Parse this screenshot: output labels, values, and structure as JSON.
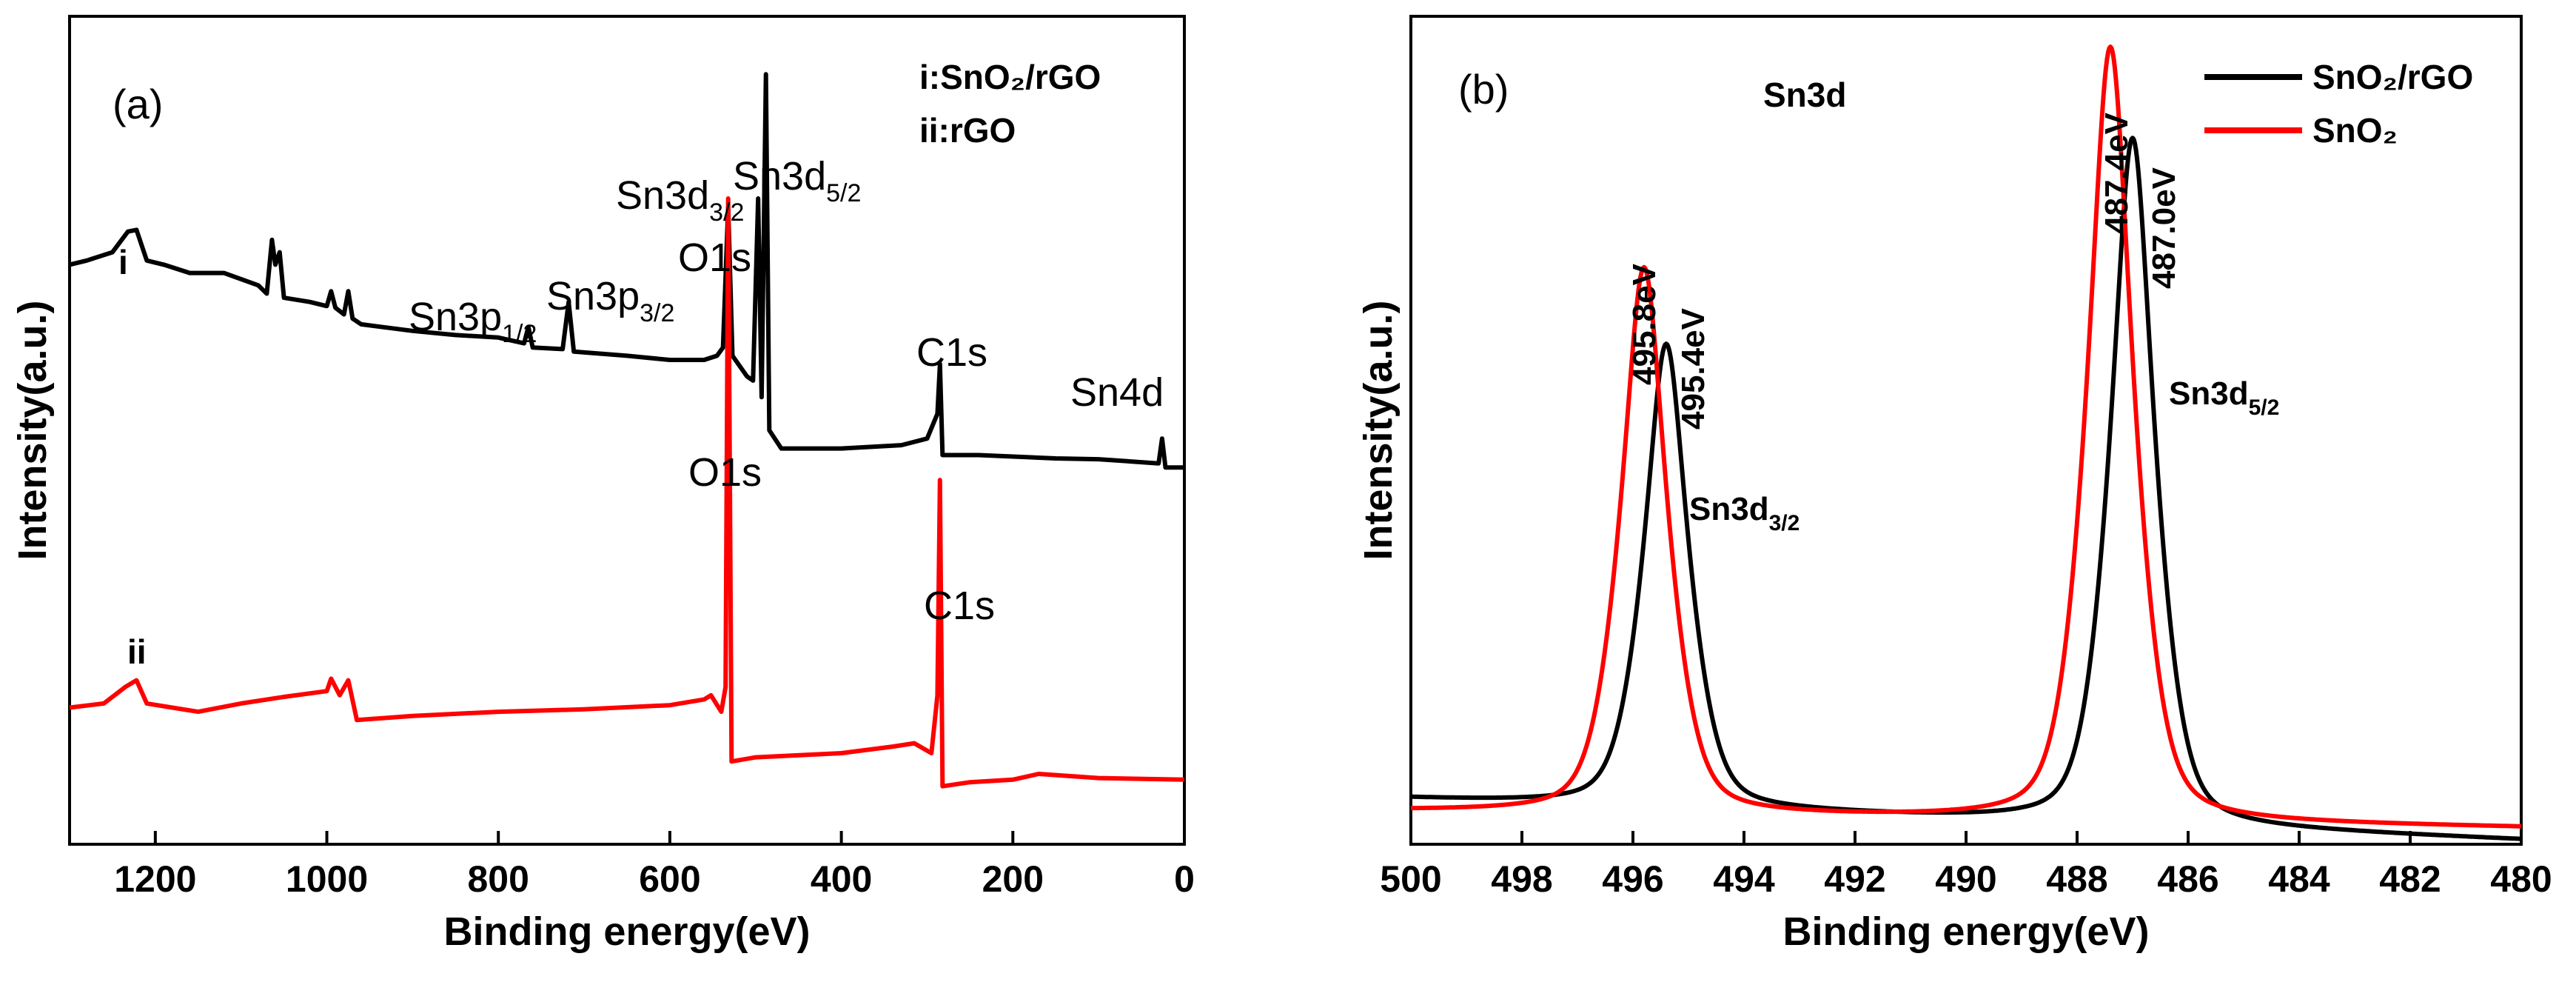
{
  "chart_data": [
    {
      "type": "line",
      "panel_label": "(a)",
      "xlabel": "Binding energy(eV)",
      "ylabel": "Intensity(a.u.)",
      "xlim": [
        1300,
        0
      ],
      "x_ticks": [
        1200,
        1000,
        800,
        600,
        400,
        200,
        0
      ],
      "legend_text": [
        "i:SnO₂/rGO",
        "ii:rGO"
      ],
      "series": [
        {
          "name": "i",
          "label": "i",
          "color": "#000000",
          "points": [
            [
              1300,
              0.7
            ],
            [
              1280,
              0.705
            ],
            [
              1250,
              0.715
            ],
            [
              1232,
              0.74
            ],
            [
              1222,
              0.742
            ],
            [
              1210,
              0.705
            ],
            [
              1190,
              0.7
            ],
            [
              1160,
              0.69
            ],
            [
              1120,
              0.69
            ],
            [
              1080,
              0.675
            ],
            [
              1070,
              0.665
            ],
            [
              1064,
              0.73
            ],
            [
              1060,
              0.7
            ],
            [
              1055,
              0.715
            ],
            [
              1050,
              0.66
            ],
            [
              1020,
              0.655
            ],
            [
              1000,
              0.65
            ],
            [
              995,
              0.668
            ],
            [
              990,
              0.648
            ],
            [
              980,
              0.64
            ],
            [
              975,
              0.668
            ],
            [
              970,
              0.635
            ],
            [
              960,
              0.628
            ],
            [
              900,
              0.62
            ],
            [
              850,
              0.615
            ],
            [
              800,
              0.612
            ],
            [
              770,
              0.605
            ],
            [
              765,
              0.625
            ],
            [
              760,
              0.6
            ],
            [
              725,
              0.598
            ],
            [
              718,
              0.655
            ],
            [
              712,
              0.595
            ],
            [
              650,
              0.59
            ],
            [
              600,
              0.585
            ],
            [
              560,
              0.585
            ],
            [
              545,
              0.59
            ],
            [
              538,
              0.6
            ],
            [
              532,
              0.77
            ],
            [
              527,
              0.59
            ],
            [
              510,
              0.565
            ],
            [
              503,
              0.56
            ],
            [
              497,
              0.78
            ],
            [
              493,
              0.54
            ],
            [
              488,
              0.93
            ],
            [
              484,
              0.5
            ],
            [
              470,
              0.478
            ],
            [
              400,
              0.478
            ],
            [
              330,
              0.482
            ],
            [
              300,
              0.49
            ],
            [
              288,
              0.52
            ],
            [
              285,
              0.58
            ],
            [
              282,
              0.47
            ],
            [
              240,
              0.47
            ],
            [
              150,
              0.466
            ],
            [
              100,
              0.465
            ],
            [
              30,
              0.46
            ],
            [
              26,
              0.49
            ],
            [
              22,
              0.455
            ],
            [
              0,
              0.455
            ]
          ]
        },
        {
          "name": "ii",
          "label": "ii",
          "color": "#ff0000",
          "points": [
            [
              1300,
              0.165
            ],
            [
              1260,
              0.17
            ],
            [
              1235,
              0.19
            ],
            [
              1222,
              0.198
            ],
            [
              1210,
              0.17
            ],
            [
              1150,
              0.16
            ],
            [
              1100,
              0.17
            ],
            [
              1050,
              0.178
            ],
            [
              1000,
              0.185
            ],
            [
              995,
              0.2
            ],
            [
              985,
              0.18
            ],
            [
              975,
              0.198
            ],
            [
              965,
              0.15
            ],
            [
              900,
              0.155
            ],
            [
              800,
              0.16
            ],
            [
              700,
              0.163
            ],
            [
              600,
              0.168
            ],
            [
              560,
              0.175
            ],
            [
              552,
              0.18
            ],
            [
              540,
              0.16
            ],
            [
              535,
              0.19
            ],
            [
              532,
              0.78
            ],
            [
              528,
              0.1
            ],
            [
              500,
              0.105
            ],
            [
              400,
              0.11
            ],
            [
              340,
              0.118
            ],
            [
              315,
              0.122
            ],
            [
              295,
              0.11
            ],
            [
              288,
              0.18
            ],
            [
              285,
              0.44
            ],
            [
              282,
              0.07
            ],
            [
              250,
              0.075
            ],
            [
              200,
              0.078
            ],
            [
              170,
              0.085
            ],
            [
              100,
              0.08
            ],
            [
              0,
              0.078
            ]
          ]
        }
      ],
      "annotations": [
        {
          "main": "Sn3d",
          "sub": "3/2"
        },
        {
          "main": "Sn3d",
          "sub": "5/2"
        },
        {
          "main": "O1s",
          "sub": ""
        },
        {
          "main": "Sn3p",
          "sub": "1/2"
        },
        {
          "main": "Sn3p",
          "sub": "3/2"
        },
        {
          "main": "C1s",
          "sub": ""
        },
        {
          "main": "Sn4d",
          "sub": ""
        },
        {
          "main": "O1s",
          "sub": ""
        },
        {
          "main": "C1s",
          "sub": ""
        }
      ]
    },
    {
      "type": "line",
      "panel_label": "(b)",
      "title": "Sn3d",
      "xlabel": "Binding energy(eV)",
      "ylabel": "Intensity(a.u.)",
      "xlim": [
        500,
        480
      ],
      "x_ticks": [
        500,
        498,
        496,
        494,
        492,
        490,
        488,
        486,
        484,
        482,
        480
      ],
      "series": [
        {
          "name": "SnO₂/rGO",
          "color": "#000000",
          "baseline": 0.055,
          "slope": -0.0025,
          "peaks": [
            {
              "center": 495.4,
              "height": 0.56,
              "sigma": 0.48
            },
            {
              "center": 487.0,
              "height": 0.83,
              "sigma": 0.48
            }
          ]
        },
        {
          "name": "SnO₂",
          "color": "#ff0000",
          "baseline": 0.04,
          "slope": -0.001,
          "peaks": [
            {
              "center": 495.8,
              "height": 0.66,
              "sigma": 0.5
            },
            {
              "center": 487.4,
              "height": 0.935,
              "sigma": 0.5
            }
          ]
        }
      ],
      "annotations": [
        {
          "main": "495.8eV",
          "sub": ""
        },
        {
          "main": "495.4eV",
          "sub": ""
        },
        {
          "main": "487.4eV",
          "sub": ""
        },
        {
          "main": "487.0eV",
          "sub": ""
        },
        {
          "main": "Sn3d",
          "sub": "3/2"
        },
        {
          "main": "Sn3d",
          "sub": "5/2"
        }
      ]
    }
  ]
}
